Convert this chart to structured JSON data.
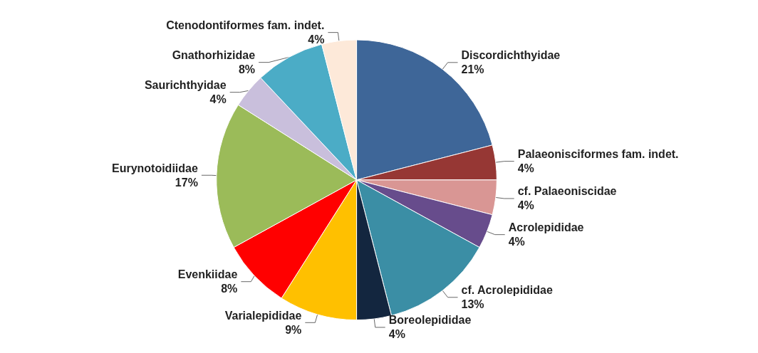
{
  "chart_data": {
    "type": "pie",
    "categories": [
      "Discordichthyidae",
      "Palaeonisciformes fam. indet.",
      "cf. Palaeoniscidae",
      "Acrolepididae",
      "cf. Acrolepididae",
      "Boreolepididae",
      "Varialepididae",
      "Evenkiidae",
      "Eurynotoidiidae",
      "Saurichthyidae",
      "Gnathorhizidae",
      "Ctenodontiformes fam. indet."
    ],
    "values": [
      21,
      4,
      4,
      4,
      13,
      4,
      9,
      8,
      17,
      4,
      8,
      4
    ],
    "value_labels": [
      "21%",
      "4%",
      "4%",
      "4%",
      "13%",
      "4%",
      "9%",
      "8%",
      "17%",
      "4%",
      "8%",
      "4%"
    ],
    "colors": [
      "#3e6698",
      "#963734",
      "#d99694",
      "#674c8c",
      "#3b8ea5",
      "#13263f",
      "#ffc000",
      "#ff0000",
      "#9bbb59",
      "#c9bfdc",
      "#4bacc6",
      "#fde9d9"
    ],
    "legend": false
  }
}
